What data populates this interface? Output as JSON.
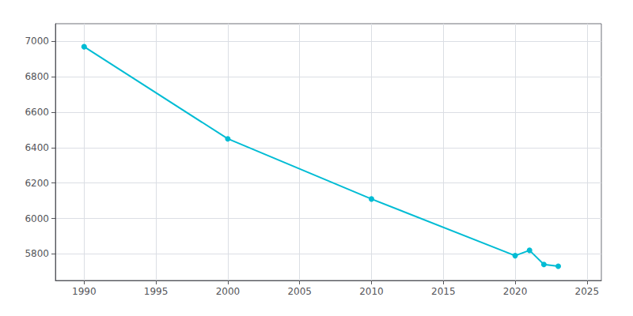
{
  "chart_data": {
    "type": "line",
    "x": [
      1990,
      2000,
      2010,
      2020,
      2021,
      2022,
      2023
    ],
    "values": [
      6970,
      6450,
      6110,
      5790,
      5820,
      5740,
      5730
    ],
    "color": "#00bcd4",
    "marker": "circle",
    "xlim": [
      1988,
      2026
    ],
    "ylim": [
      5650,
      7100
    ],
    "xticks": [
      1990,
      1995,
      2000,
      2005,
      2010,
      2015,
      2020,
      2025
    ],
    "yticks": [
      5800,
      6000,
      6200,
      6400,
      6600,
      6800,
      7000
    ],
    "grid": true
  }
}
